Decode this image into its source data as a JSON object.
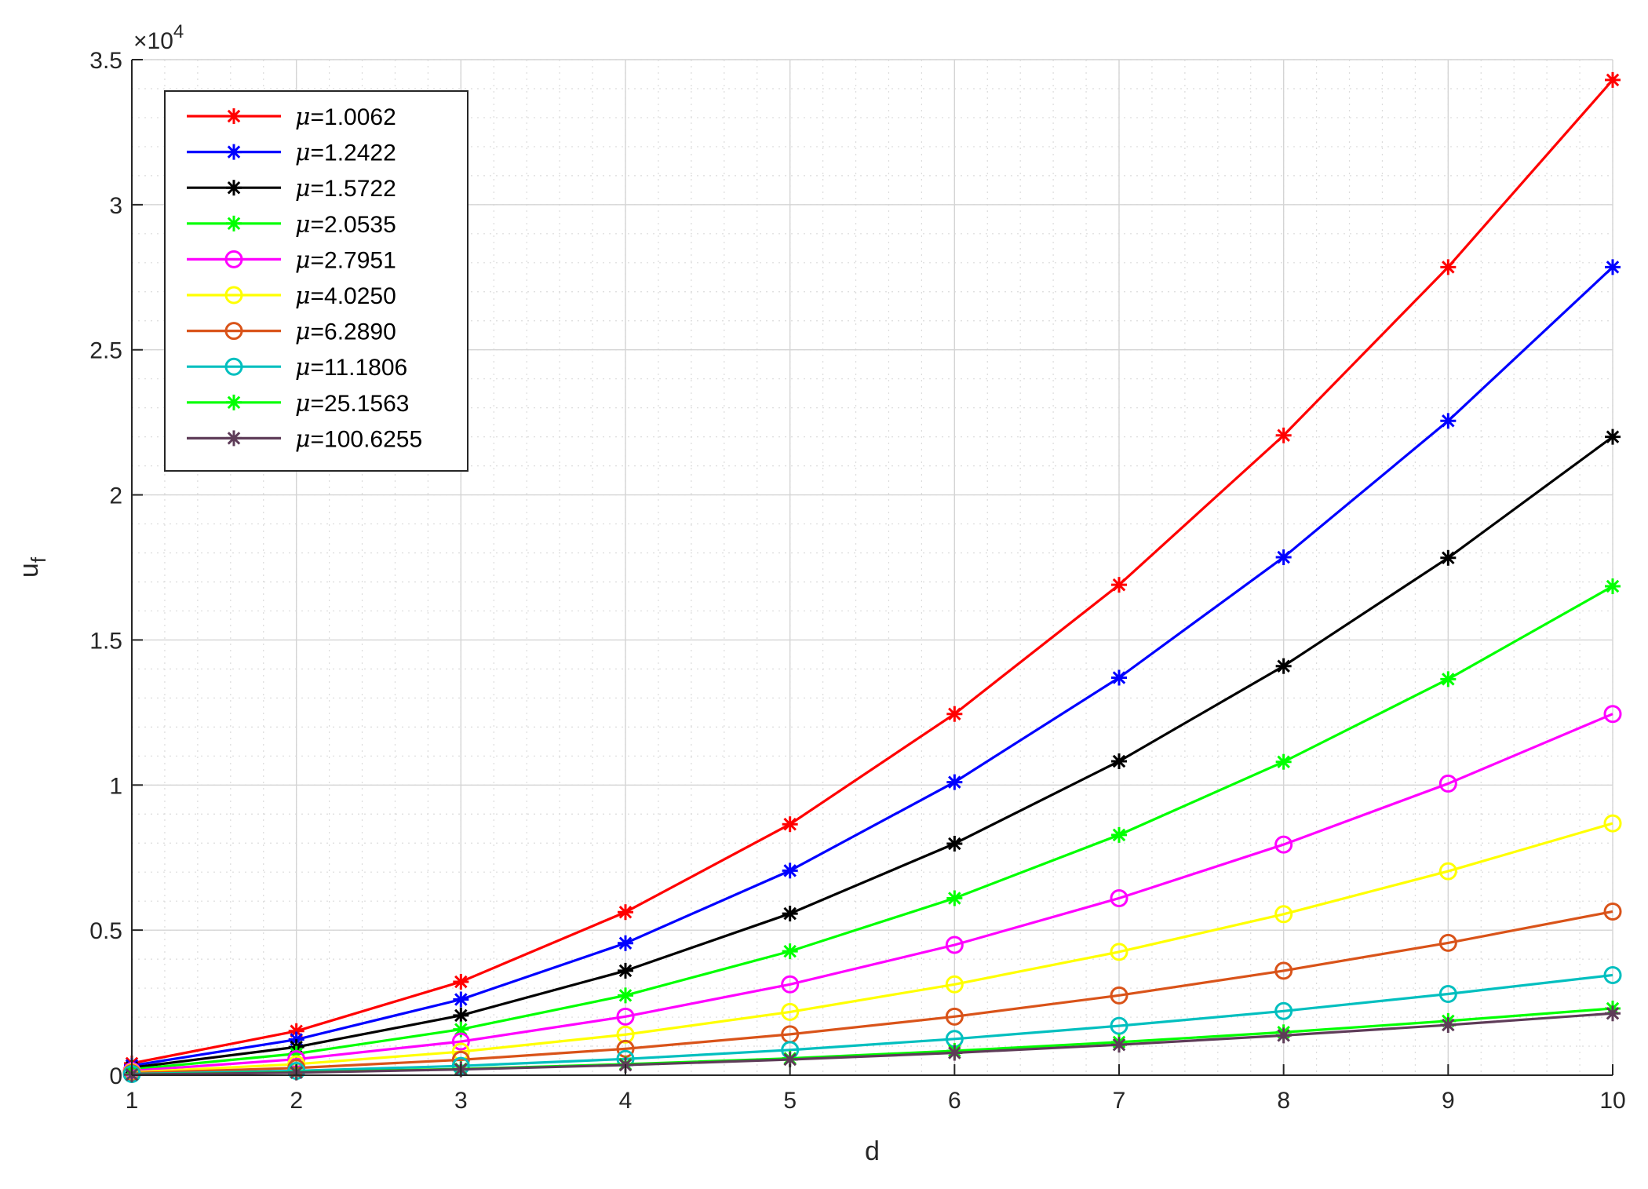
{
  "chart_data": {
    "type": "line",
    "title": "",
    "xlabel": "d",
    "ylabel_base": "u",
    "ylabel_sub": "f",
    "y_exponent_base": "×10",
    "y_exponent_power": "4",
    "xlim": [
      1,
      10
    ],
    "ylim": [
      0,
      35000
    ],
    "x_ticks": [
      1,
      2,
      3,
      4,
      5,
      6,
      7,
      8,
      9,
      10
    ],
    "x_tick_labels": [
      "1",
      "2",
      "3",
      "4",
      "5",
      "6",
      "7",
      "8",
      "9",
      "10"
    ],
    "y_ticks": [
      0,
      5000,
      10000,
      15000,
      20000,
      25000,
      30000,
      35000
    ],
    "y_tick_labels": [
      "0",
      "0.5",
      "1",
      "1.5",
      "2",
      "2.5",
      "3",
      "3.5"
    ],
    "grid": "on",
    "minor_grid": "on",
    "legend_position": "top-left",
    "x": [
      1,
      2,
      3,
      4,
      5,
      6,
      7,
      8,
      9,
      10
    ],
    "series": [
      {
        "name": "μ=1.0062",
        "mu_symbol": "μ",
        "mu_value": "=1.0062",
        "color": "#ff0000",
        "marker": "asterisk",
        "values": [
          410,
          1520,
          3220,
          5620,
          8650,
          12450,
          16900,
          22050,
          27850,
          34300
        ]
      },
      {
        "name": "μ=1.2422",
        "mu_symbol": "μ",
        "mu_value": "=1.2422",
        "color": "#0000ff",
        "marker": "asterisk",
        "values": [
          330,
          1230,
          2610,
          4550,
          7050,
          10100,
          13700,
          17850,
          22550,
          27850
        ]
      },
      {
        "name": "μ=1.5722",
        "mu_symbol": "μ",
        "mu_value": "=1.5722",
        "color": "#000000",
        "marker": "asterisk",
        "values": [
          260,
          970,
          2060,
          3600,
          5570,
          7980,
          10820,
          14100,
          17830,
          22000
        ]
      },
      {
        "name": "μ=2.0535",
        "mu_symbol": "μ",
        "mu_value": "=2.0535",
        "color": "#00ff00",
        "marker": "asterisk",
        "values": [
          200,
          740,
          1580,
          2750,
          4270,
          6100,
          8280,
          10800,
          13650,
          16850
        ]
      },
      {
        "name": "μ=2.7951",
        "mu_symbol": "μ",
        "mu_value": "=2.7951",
        "color": "#ff00ff",
        "marker": "circle",
        "values": [
          150,
          550,
          1160,
          2020,
          3130,
          4490,
          6100,
          7950,
          10050,
          12450
        ]
      },
      {
        "name": "μ=4.0250",
        "mu_symbol": "μ",
        "mu_value": "=4.0250",
        "color": "#ffff00",
        "marker": "circle",
        "values": [
          100,
          380,
          810,
          1400,
          2180,
          3130,
          4250,
          5550,
          7030,
          8680
        ]
      },
      {
        "name": "μ=6.2890",
        "mu_symbol": "μ",
        "mu_value": "=6.2890",
        "color": "#d95319",
        "marker": "circle",
        "values": [
          70,
          250,
          530,
          910,
          1410,
          2020,
          2750,
          3600,
          4560,
          5640
        ]
      },
      {
        "name": "μ=11.1806",
        "mu_symbol": "μ",
        "mu_value": "=11.1806",
        "color": "#00bfbf",
        "marker": "circle",
        "values": [
          40,
          150,
          320,
          560,
          870,
          1250,
          1700,
          2210,
          2800,
          3450
        ]
      },
      {
        "name": "μ=25.1563",
        "mu_symbol": "μ",
        "mu_value": "=25.1563",
        "color": "#00ff00",
        "marker": "asterisk",
        "values": [
          25,
          100,
          215,
          380,
          580,
          840,
          1140,
          1480,
          1870,
          2300
        ]
      },
      {
        "name": "μ=100.6255",
        "mu_symbol": "μ",
        "mu_value": "=100.6255",
        "color": "#5e3c58",
        "marker": "asterisk",
        "values": [
          20,
          90,
          200,
          350,
          540,
          770,
          1050,
          1370,
          1730,
          2130
        ]
      }
    ]
  }
}
